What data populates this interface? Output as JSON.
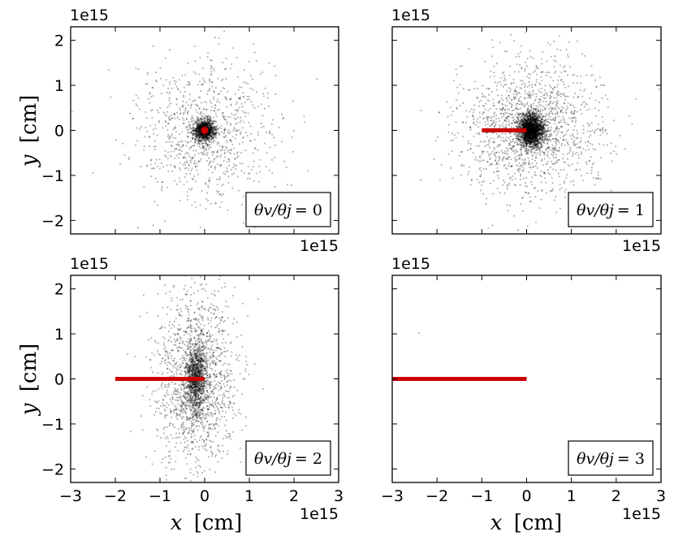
{
  "chart_data": {
    "type": "scatter",
    "layout": "2x2 grid",
    "x_offset_text": "1e15",
    "y_offset_text": "1e15",
    "xlabel": {
      "var": "x",
      "unit": "[cm]"
    },
    "ylabel": {
      "var": "y",
      "unit": "[cm]"
    },
    "xlim": [
      -3,
      3
    ],
    "ylim": [
      -2.3,
      2.3
    ],
    "xticks": [
      -3,
      -2,
      -1,
      0,
      1,
      2,
      3
    ],
    "xtick_labels": [
      "−3",
      "−2",
      "−1",
      "0",
      "1",
      "2",
      "3"
    ],
    "yticks": [
      -2,
      -1,
      0,
      1,
      2
    ],
    "ytick_labels": [
      "−2",
      "−1",
      "0",
      "1",
      "2"
    ],
    "grid": false,
    "point_color": "#000000",
    "jet_color": "#cc0000",
    "panels": [
      {
        "ratio_value": "0",
        "legend": {
          "lhs": "θv/θj",
          "eq": "= 0"
        },
        "legend_placement": "bottom-right",
        "jet_segment": {
          "x": [
            0,
            0
          ],
          "y": 0
        },
        "scatter": {
          "center": [
            0,
            0
          ],
          "core_sigma": [
            0.12,
            0.12
          ],
          "halo_sigma": [
            0.8,
            0.8
          ],
          "n_core": 1100,
          "n_halo": 900,
          "opacity": 0.35
        }
      },
      {
        "ratio_value": "1",
        "legend": {
          "lhs": "θv/θj",
          "eq": "= 1"
        },
        "legend_placement": "bottom-right",
        "jet_segment": {
          "x": [
            -1.0,
            0
          ],
          "y": 0
        },
        "scatter": {
          "center": [
            0.1,
            0
          ],
          "core_sigma": [
            0.14,
            0.18
          ],
          "halo_sigma": [
            0.8,
            0.75
          ],
          "n_core": 2200,
          "n_halo": 1500,
          "opacity": 0.35
        }
      },
      {
        "ratio_value": "2",
        "legend": {
          "lhs": "θv/θj",
          "eq": "= 2"
        },
        "legend_placement": "bottom-right",
        "jet_segment": {
          "x": [
            -2.0,
            0
          ],
          "y": 0
        },
        "scatter": {
          "center": [
            -0.2,
            0
          ],
          "core_sigma": [
            0.12,
            0.4
          ],
          "halo_sigma": [
            0.45,
            1.0
          ],
          "n_core": 1000,
          "n_halo": 1500,
          "opacity": 0.35
        }
      },
      {
        "ratio_value": "3",
        "legend": {
          "lhs": "θv/θj",
          "eq": "= 3"
        },
        "legend_placement": "bottom-right",
        "jet_segment": {
          "x": [
            -3.0,
            0
          ],
          "y": 0
        },
        "scatter": {
          "center": [
            -2.4,
            1.0
          ],
          "core_sigma": [
            0.02,
            0.02
          ],
          "halo_sigma": [
            0.02,
            0.02
          ],
          "n_core": 1,
          "n_halo": 0,
          "opacity": 0.35
        }
      }
    ]
  }
}
